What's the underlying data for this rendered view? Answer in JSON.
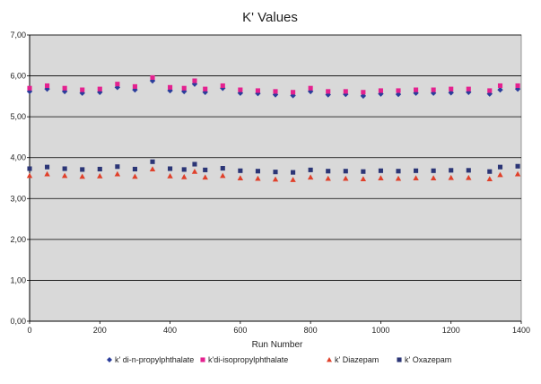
{
  "chart_data": {
    "type": "scatter",
    "title": "K' Values",
    "xlabel": "Run Number",
    "ylabel": "",
    "xlim": [
      0,
      1400
    ],
    "ylim": [
      0,
      7
    ],
    "x_ticks": [
      "0",
      "200",
      "400",
      "600",
      "800",
      "1000",
      "1200",
      "1400"
    ],
    "y_ticks": [
      "0,00",
      "1,00",
      "2,00",
      "3,00",
      "4,00",
      "5,00",
      "6,00",
      "7,00"
    ],
    "grid": true,
    "plot_background": "#d9d9d9",
    "legend_position": "bottom",
    "x": [
      0,
      50,
      100,
      150,
      200,
      250,
      300,
      350,
      400,
      440,
      470,
      500,
      550,
      600,
      650,
      700,
      750,
      800,
      850,
      900,
      950,
      1000,
      1050,
      1100,
      1150,
      1200,
      1250,
      1310,
      1340,
      1390
    ],
    "series": [
      {
        "name": "k' di-n-propylphthalate",
        "marker": "diamond",
        "color": "#2b3d9b",
        "values": [
          5.62,
          5.68,
          5.62,
          5.58,
          5.6,
          5.72,
          5.66,
          5.88,
          5.64,
          5.62,
          5.8,
          5.6,
          5.7,
          5.58,
          5.57,
          5.54,
          5.52,
          5.62,
          5.54,
          5.55,
          5.51,
          5.56,
          5.55,
          5.58,
          5.58,
          5.59,
          5.6,
          5.56,
          5.66,
          5.68
        ]
      },
      {
        "name": "k'di-isopropylphthalate",
        "marker": "square",
        "color": "#e4218f",
        "values": [
          5.7,
          5.76,
          5.7,
          5.66,
          5.68,
          5.8,
          5.74,
          5.96,
          5.72,
          5.7,
          5.88,
          5.68,
          5.76,
          5.66,
          5.64,
          5.62,
          5.6,
          5.7,
          5.62,
          5.62,
          5.6,
          5.64,
          5.64,
          5.66,
          5.66,
          5.68,
          5.68,
          5.64,
          5.76,
          5.76
        ]
      },
      {
        "name": "k' Diazepam",
        "marker": "triangle",
        "color": "#e0402a",
        "values": [
          3.56,
          3.6,
          3.56,
          3.54,
          3.55,
          3.6,
          3.54,
          3.72,
          3.55,
          3.53,
          3.66,
          3.52,
          3.56,
          3.5,
          3.49,
          3.47,
          3.46,
          3.52,
          3.49,
          3.49,
          3.48,
          3.5,
          3.49,
          3.5,
          3.5,
          3.51,
          3.51,
          3.48,
          3.58,
          3.6
        ]
      },
      {
        "name": "k' Oxazepam",
        "marker": "square",
        "color": "#2b3576",
        "values": [
          3.73,
          3.77,
          3.73,
          3.71,
          3.72,
          3.78,
          3.72,
          3.9,
          3.73,
          3.71,
          3.84,
          3.7,
          3.74,
          3.68,
          3.67,
          3.65,
          3.64,
          3.7,
          3.67,
          3.67,
          3.66,
          3.68,
          3.67,
          3.68,
          3.68,
          3.69,
          3.69,
          3.66,
          3.77,
          3.79
        ]
      }
    ]
  }
}
